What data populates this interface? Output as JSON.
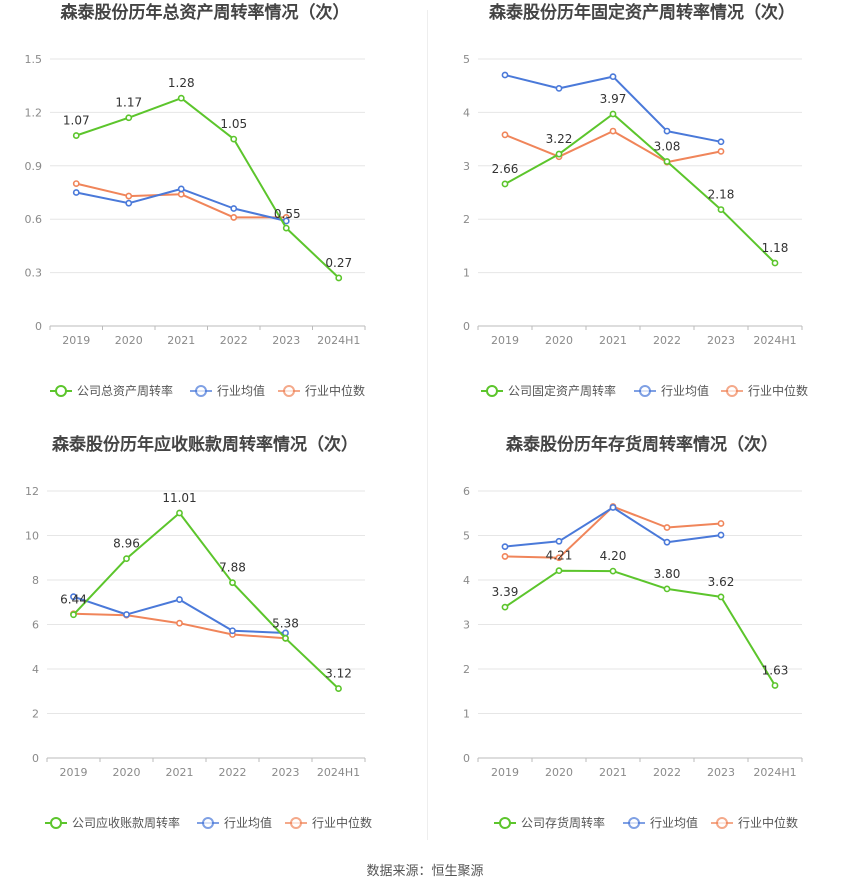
{
  "source_label": "数据来源：恒生聚源",
  "colors": {
    "company": "#5cc52c",
    "avg": "#4a79d9",
    "median": "#f0855a",
    "grid": "#e6e6e6",
    "axis_text": "#8a8a8a",
    "title": "#444444"
  },
  "chart_data": [
    {
      "type": "line",
      "title": "森泰股份历年总资产周转率情况（次）",
      "categories": [
        "2019",
        "2020",
        "2021",
        "2022",
        "2023",
        "2024H1"
      ],
      "ylim": [
        0,
        1.5
      ],
      "yticks": [
        "0",
        "0.3",
        "0.6",
        "0.9",
        "1.2",
        "1.5"
      ],
      "grid": true,
      "legend_position": "bottom",
      "series": [
        {
          "name": "公司总资产周转率",
          "role": "company",
          "values": [
            1.07,
            1.17,
            1.28,
            1.05,
            0.55,
            0.27
          ],
          "labels": [
            "1.07",
            "1.17",
            "1.28",
            "1.05",
            "0.55",
            "0.27"
          ]
        },
        {
          "name": "行业均值",
          "role": "avg",
          "values": [
            0.75,
            0.69,
            0.77,
            0.66,
            0.59,
            null
          ]
        },
        {
          "name": "行业中位数",
          "role": "median",
          "values": [
            0.8,
            0.73,
            0.74,
            0.61,
            0.61,
            null
          ]
        }
      ]
    },
    {
      "type": "line",
      "title": "森泰股份历年固定资产周转率情况（次）",
      "categories": [
        "2019",
        "2020",
        "2021",
        "2022",
        "2023",
        "2024H1"
      ],
      "ylim": [
        0,
        5
      ],
      "yticks": [
        "0",
        "1",
        "2",
        "3",
        "4",
        "5"
      ],
      "grid": true,
      "legend_position": "bottom",
      "series": [
        {
          "name": "公司固定资产周转率",
          "role": "company",
          "values": [
            2.66,
            3.22,
            3.97,
            3.08,
            2.18,
            1.18
          ],
          "labels": [
            "2.66",
            "3.22",
            "3.97",
            "3.08",
            "2.18",
            "1.18"
          ]
        },
        {
          "name": "行业均值",
          "role": "avg",
          "values": [
            4.7,
            4.45,
            4.67,
            3.65,
            3.45,
            null
          ]
        },
        {
          "name": "行业中位数",
          "role": "median",
          "values": [
            3.58,
            3.17,
            3.65,
            3.07,
            3.27,
            null
          ]
        }
      ]
    },
    {
      "type": "line",
      "title": "森泰股份历年应收账款周转率情况（次）",
      "categories": [
        "2019",
        "2020",
        "2021",
        "2022",
        "2023",
        "2024H1"
      ],
      "ylim": [
        0,
        12
      ],
      "yticks": [
        "0",
        "2",
        "4",
        "6",
        "8",
        "10",
        "12"
      ],
      "grid": true,
      "legend_position": "bottom",
      "series": [
        {
          "name": "公司应收账款周转率",
          "role": "company",
          "values": [
            6.44,
            8.96,
            11.01,
            7.88,
            5.38,
            3.12
          ],
          "labels": [
            "6.44",
            "8.96",
            "11.01",
            "7.88",
            "5.38",
            "3.12"
          ]
        },
        {
          "name": "行业均值",
          "role": "avg",
          "values": [
            7.25,
            6.45,
            7.12,
            5.72,
            5.62,
            null
          ]
        },
        {
          "name": "行业中位数",
          "role": "median",
          "values": [
            6.48,
            6.42,
            6.06,
            5.55,
            5.38,
            null
          ]
        }
      ]
    },
    {
      "type": "line",
      "title": "森泰股份历年存货周转率情况（次）",
      "categories": [
        "2019",
        "2020",
        "2021",
        "2022",
        "2023",
        "2024H1"
      ],
      "ylim": [
        0,
        6
      ],
      "yticks": [
        "0",
        "1",
        "2",
        "3",
        "4",
        "5",
        "6"
      ],
      "grid": true,
      "legend_position": "bottom",
      "series": [
        {
          "name": "公司存货周转率",
          "role": "company",
          "values": [
            3.39,
            4.21,
            4.2,
            3.8,
            3.62,
            1.63
          ],
          "labels": [
            "3.39",
            "4.21",
            "4.20",
            "3.80",
            "3.62",
            "1.63"
          ]
        },
        {
          "name": "行业均值",
          "role": "avg",
          "values": [
            4.75,
            4.87,
            5.63,
            4.85,
            5.01,
            null
          ]
        },
        {
          "name": "行业中位数",
          "role": "median",
          "values": [
            4.53,
            4.5,
            5.65,
            5.18,
            5.27,
            null
          ]
        }
      ]
    }
  ]
}
